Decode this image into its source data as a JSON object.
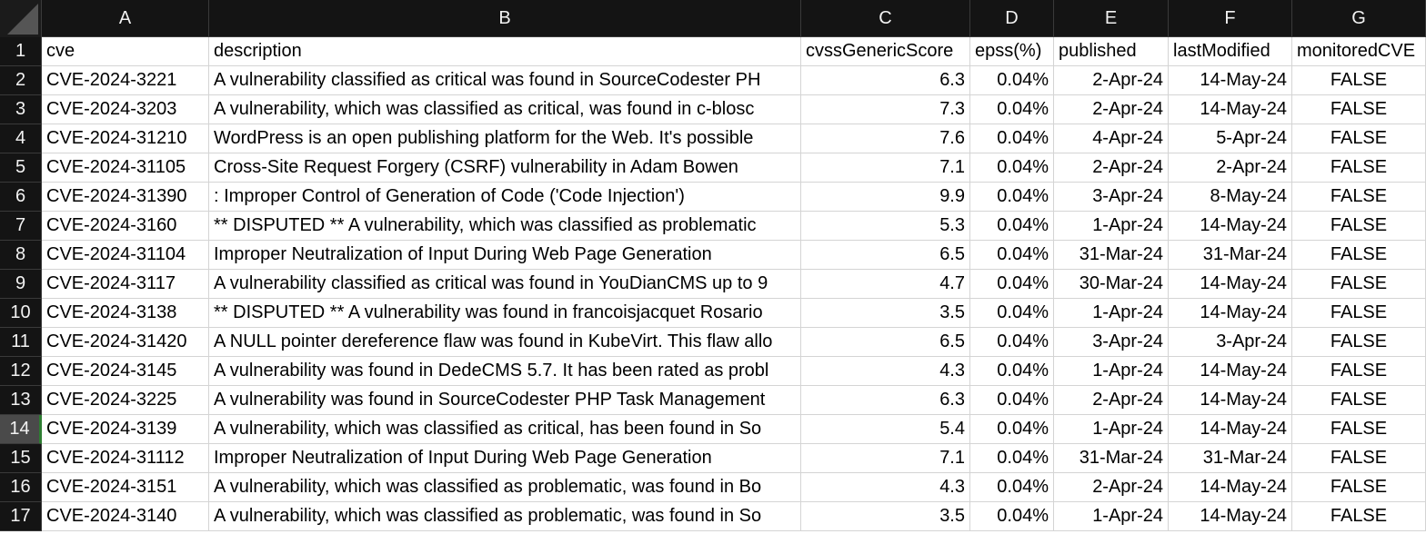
{
  "columns": [
    "A",
    "B",
    "C",
    "D",
    "E",
    "F",
    "G"
  ],
  "header_row": {
    "num": "1",
    "cells": [
      "cve",
      "description",
      "cvssGenericScore",
      "epss(%)",
      "published",
      "lastModified",
      "monitoredCVE"
    ]
  },
  "rows": [
    {
      "num": "2",
      "cve": "CVE-2024-3221",
      "description": "A vulnerability classified as critical was found in SourceCodester PH",
      "score": "6.3",
      "epss": "0.04%",
      "published": "2-Apr-24",
      "lastModified": "14-May-24",
      "monitored": "FALSE"
    },
    {
      "num": "3",
      "cve": "CVE-2024-3203",
      "description": "A vulnerability, which was classified as critical, was found in c-blosc",
      "score": "7.3",
      "epss": "0.04%",
      "published": "2-Apr-24",
      "lastModified": "14-May-24",
      "monitored": "FALSE"
    },
    {
      "num": "4",
      "cve": "CVE-2024-31210",
      "description": "WordPress is an open publishing platform for the Web. It's possible",
      "score": "7.6",
      "epss": "0.04%",
      "published": "4-Apr-24",
      "lastModified": "5-Apr-24",
      "monitored": "FALSE"
    },
    {
      "num": "5",
      "cve": "CVE-2024-31105",
      "description": "Cross-Site Request Forgery (CSRF) vulnerability in Adam Bowen",
      "score": "7.1",
      "epss": "0.04%",
      "published": "2-Apr-24",
      "lastModified": "2-Apr-24",
      "monitored": "FALSE"
    },
    {
      "num": "6",
      "cve": "CVE-2024-31390",
      "description": ": Improper Control of Generation of Code ('Code Injection')",
      "score": "9.9",
      "epss": "0.04%",
      "published": "3-Apr-24",
      "lastModified": "8-May-24",
      "monitored": "FALSE"
    },
    {
      "num": "7",
      "cve": "CVE-2024-3160",
      "description": "** DISPUTED ** A vulnerability, which was classified as problematic",
      "score": "5.3",
      "epss": "0.04%",
      "published": "1-Apr-24",
      "lastModified": "14-May-24",
      "monitored": "FALSE"
    },
    {
      "num": "8",
      "cve": "CVE-2024-31104",
      "description": "Improper Neutralization of Input During Web Page Generation",
      "score": "6.5",
      "epss": "0.04%",
      "published": "31-Mar-24",
      "lastModified": "31-Mar-24",
      "monitored": "FALSE"
    },
    {
      "num": "9",
      "cve": "CVE-2024-3117",
      "description": "A vulnerability classified as critical was found in YouDianCMS up to 9",
      "score": "4.7",
      "epss": "0.04%",
      "published": "30-Mar-24",
      "lastModified": "14-May-24",
      "monitored": "FALSE"
    },
    {
      "num": "10",
      "cve": "CVE-2024-3138",
      "description": "** DISPUTED ** A vulnerability was found in francoisjacquet Rosario",
      "score": "3.5",
      "epss": "0.04%",
      "published": "1-Apr-24",
      "lastModified": "14-May-24",
      "monitored": "FALSE"
    },
    {
      "num": "11",
      "cve": "CVE-2024-31420",
      "description": "A NULL pointer dereference flaw was found in KubeVirt. This flaw allo",
      "score": "6.5",
      "epss": "0.04%",
      "published": "3-Apr-24",
      "lastModified": "3-Apr-24",
      "monitored": "FALSE"
    },
    {
      "num": "12",
      "cve": "CVE-2024-3145",
      "description": "A vulnerability was found in DedeCMS 5.7. It has been rated as probl",
      "score": "4.3",
      "epss": "0.04%",
      "published": "1-Apr-24",
      "lastModified": "14-May-24",
      "monitored": "FALSE"
    },
    {
      "num": "13",
      "cve": "CVE-2024-3225",
      "description": "A vulnerability was found in SourceCodester PHP Task Management",
      "score": "6.3",
      "epss": "0.04%",
      "published": "2-Apr-24",
      "lastModified": "14-May-24",
      "monitored": "FALSE"
    },
    {
      "num": "14",
      "cve": "CVE-2024-3139",
      "description": "A vulnerability, which was classified as critical, has been found in So",
      "score": "5.4",
      "epss": "0.04%",
      "published": "1-Apr-24",
      "lastModified": "14-May-24",
      "monitored": "FALSE",
      "active": true
    },
    {
      "num": "15",
      "cve": "CVE-2024-31112",
      "description": "Improper Neutralization of Input During Web Page Generation",
      "score": "7.1",
      "epss": "0.04%",
      "published": "31-Mar-24",
      "lastModified": "31-Mar-24",
      "monitored": "FALSE"
    },
    {
      "num": "16",
      "cve": "CVE-2024-3151",
      "description": "A vulnerability, which was classified as problematic, was found in Bo",
      "score": "4.3",
      "epss": "0.04%",
      "published": "2-Apr-24",
      "lastModified": "14-May-24",
      "monitored": "FALSE"
    },
    {
      "num": "17",
      "cve": "CVE-2024-3140",
      "description": "A vulnerability, which was classified as problematic, was found in So",
      "score": "3.5",
      "epss": "0.04%",
      "published": "1-Apr-24",
      "lastModified": "14-May-24",
      "monitored": "FALSE"
    }
  ]
}
